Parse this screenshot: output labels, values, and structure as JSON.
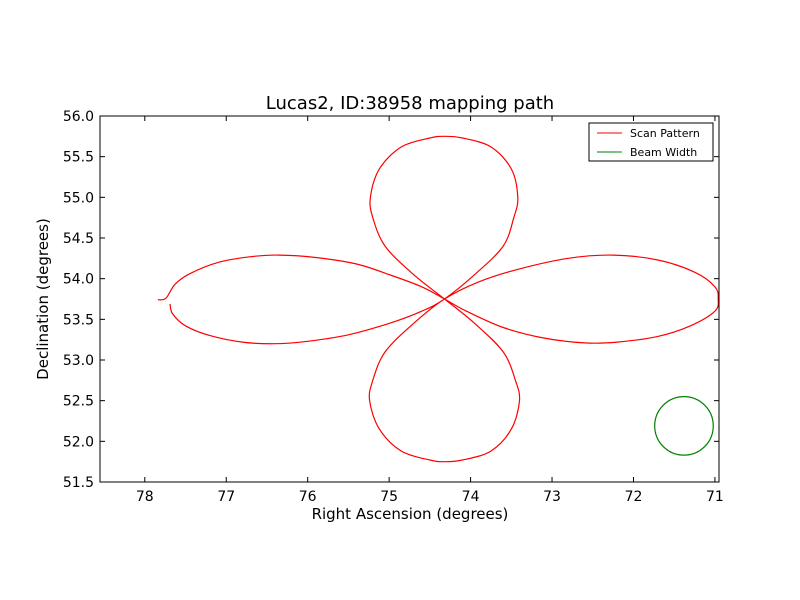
{
  "chart_data": {
    "type": "line",
    "title": "Lucas2, ID:38958 mapping path",
    "xlabel": "Right Ascension (degrees)",
    "ylabel": "Declination (degrees)",
    "xlim": [
      78.55,
      70.95
    ],
    "ylim": [
      51.5,
      56.0
    ],
    "x_inverted": true,
    "x_ticks": [
      78,
      77,
      76,
      75,
      74,
      73,
      72,
      71
    ],
    "x_tick_labels": [
      "78",
      "77",
      "76",
      "75",
      "74",
      "73",
      "72",
      "71"
    ],
    "y_ticks": [
      51.5,
      52.0,
      52.5,
      53.0,
      53.5,
      54.0,
      54.5,
      55.0,
      55.5,
      56.0
    ],
    "y_tick_labels": [
      "51.5",
      "52.0",
      "52.5",
      "53.0",
      "53.5",
      "54.0",
      "54.5",
      "55.0",
      "55.5",
      "56.0"
    ],
    "grid": false,
    "legend_position": "top-right",
    "center": {
      "ra": 74.32,
      "dec": 53.75
    },
    "series": [
      {
        "name": "Scan Pattern",
        "color": "#ff0000",
        "points": [
          [
            77.84,
            53.74
          ],
          [
            77.74,
            53.76
          ],
          [
            77.63,
            53.93
          ],
          [
            77.45,
            54.06
          ],
          [
            77.1,
            54.2
          ],
          [
            76.7,
            54.27
          ],
          [
            76.35,
            54.29
          ],
          [
            75.9,
            54.26
          ],
          [
            75.4,
            54.18
          ],
          [
            75.0,
            54.05
          ],
          [
            74.6,
            53.9
          ],
          [
            74.32,
            53.75
          ],
          [
            74.05,
            53.6
          ],
          [
            73.6,
            53.4
          ],
          [
            73.1,
            53.27
          ],
          [
            72.6,
            53.21
          ],
          [
            72.2,
            53.22
          ],
          [
            71.7,
            53.29
          ],
          [
            71.3,
            53.42
          ],
          [
            71.0,
            53.6
          ],
          [
            70.96,
            53.75
          ],
          [
            71.0,
            53.9
          ],
          [
            71.25,
            54.08
          ],
          [
            71.7,
            54.23
          ],
          [
            72.25,
            54.29
          ],
          [
            72.8,
            54.25
          ],
          [
            73.4,
            54.12
          ],
          [
            73.9,
            53.96
          ],
          [
            74.32,
            53.75
          ],
          [
            74.7,
            53.45
          ],
          [
            75.05,
            53.1
          ],
          [
            75.2,
            52.75
          ],
          [
            75.24,
            52.5
          ],
          [
            75.12,
            52.15
          ],
          [
            74.85,
            51.88
          ],
          [
            74.5,
            51.77
          ],
          [
            74.32,
            51.75
          ],
          [
            74.1,
            51.77
          ],
          [
            73.75,
            51.88
          ],
          [
            73.5,
            52.15
          ],
          [
            73.4,
            52.5
          ],
          [
            73.45,
            52.75
          ],
          [
            73.6,
            53.1
          ],
          [
            73.95,
            53.45
          ],
          [
            74.32,
            53.75
          ],
          [
            74.7,
            54.05
          ],
          [
            75.05,
            54.4
          ],
          [
            75.2,
            54.75
          ],
          [
            75.23,
            55.0
          ],
          [
            75.12,
            55.35
          ],
          [
            74.85,
            55.62
          ],
          [
            74.5,
            55.73
          ],
          [
            74.32,
            55.75
          ],
          [
            74.1,
            55.73
          ],
          [
            73.75,
            55.62
          ],
          [
            73.5,
            55.35
          ],
          [
            73.42,
            55.0
          ],
          [
            73.47,
            54.75
          ],
          [
            73.6,
            54.4
          ],
          [
            73.95,
            54.05
          ],
          [
            74.32,
            53.75
          ],
          [
            74.6,
            53.6
          ],
          [
            75.0,
            53.45
          ],
          [
            75.5,
            53.31
          ],
          [
            76.0,
            53.23
          ],
          [
            76.4,
            53.2
          ],
          [
            76.8,
            53.22
          ],
          [
            77.2,
            53.3
          ],
          [
            77.5,
            53.42
          ],
          [
            77.66,
            53.57
          ],
          [
            77.69,
            53.69
          ]
        ]
      },
      {
        "name": "Beam Width",
        "color": "#008000",
        "shape": "circle",
        "center": [
          71.38,
          52.19
        ],
        "radius_dec": 0.36
      }
    ]
  }
}
